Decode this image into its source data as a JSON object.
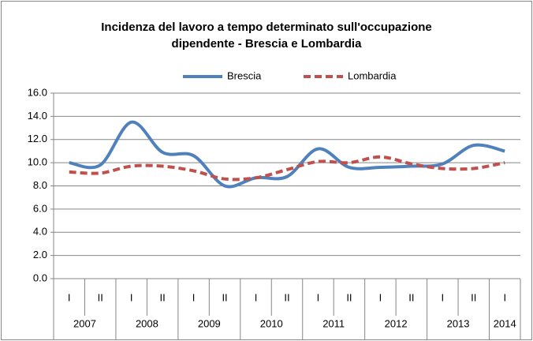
{
  "chart_data": {
    "type": "line",
    "title": "Incidenza del lavoro a tempo determinato sull'occupazione dipendente - Brescia e Lombardia",
    "categories": [
      [
        "2007",
        "I"
      ],
      [
        "2007",
        "II"
      ],
      [
        "2008",
        "I"
      ],
      [
        "2008",
        "II"
      ],
      [
        "2009",
        "I"
      ],
      [
        "2009",
        "II"
      ],
      [
        "2010",
        "I"
      ],
      [
        "2010",
        "II"
      ],
      [
        "2011",
        "I"
      ],
      [
        "2011",
        "II"
      ],
      [
        "2012",
        "I"
      ],
      [
        "2012",
        "II"
      ],
      [
        "2013",
        "I"
      ],
      [
        "2013",
        "II"
      ],
      [
        "2014",
        "I"
      ]
    ],
    "series": [
      {
        "name": "Brescia",
        "color": "#4f81bd",
        "dash": false,
        "values": [
          10.0,
          9.8,
          13.5,
          10.9,
          10.6,
          8.0,
          8.7,
          8.8,
          11.2,
          9.6,
          9.6,
          9.7,
          9.9,
          11.5,
          11.0
        ]
      },
      {
        "name": "Lombardia",
        "color": "#c0504d",
        "dash": true,
        "values": [
          9.2,
          9.1,
          9.7,
          9.7,
          9.3,
          8.6,
          8.7,
          9.4,
          10.1,
          10.0,
          10.5,
          9.9,
          9.5,
          9.5,
          10.0
        ]
      }
    ],
    "ylim": [
      0,
      16
    ],
    "yticks": [
      {
        "value": 0,
        "label": "0.0"
      },
      {
        "value": 2,
        "label": "2.0"
      },
      {
        "value": 4,
        "label": "4.0"
      },
      {
        "value": 6,
        "label": "6.0"
      },
      {
        "value": 8,
        "label": "8.0"
      },
      {
        "value": 10,
        "label": "10.0"
      },
      {
        "value": 12,
        "label": "12.0"
      },
      {
        "value": 14,
        "label": "14.0"
      },
      {
        "value": 16,
        "label": "16.0"
      }
    ],
    "grid": true,
    "legend": "top",
    "smooth": true
  }
}
